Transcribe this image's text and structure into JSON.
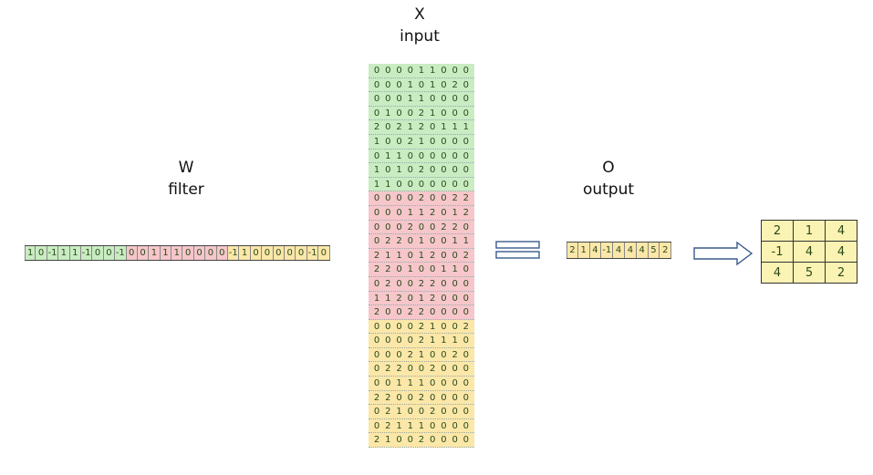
{
  "labels": {
    "w_symbol": "W",
    "w_name": "filter",
    "x_symbol": "X",
    "x_name": "input",
    "o_symbol": "O",
    "o_name": "output"
  },
  "colors": {
    "green": "#c9ecc2",
    "red": "#f6c6cb",
    "yellow": "#fbe7a8",
    "matrix": "#fbf3b3"
  },
  "filter": [
    {
      "color": "green",
      "values": [
        "1",
        "0",
        "-1",
        "1",
        "1",
        "-1",
        "0",
        "0",
        "-1"
      ]
    },
    {
      "color": "red",
      "values": [
        "0",
        "0",
        "1",
        "1",
        "1",
        "0",
        "0",
        "0",
        "0"
      ]
    },
    {
      "color": "yellow",
      "values": [
        "-1",
        "1",
        "0",
        "0",
        "0",
        "0",
        "0",
        "-1",
        "0"
      ]
    }
  ],
  "input": [
    {
      "color": "green",
      "rows": [
        "0 0 0 0 1 1 0 0 0",
        "0 0 0 1 0 1 0 2 0",
        "0 0 0 1 1 0 0 0 0",
        "0 1 0 0 2 1 0 0 0",
        "2 0 2 1 2 0 1 1 1",
        "1 0 0 2 1 0 0 0 0",
        "0 1 1 0 0 0 0 0 0",
        "1 0 1 0 2 0 0 0 0",
        "1 1 0 0 0 0 0 0 0"
      ]
    },
    {
      "color": "red",
      "rows": [
        "0 0 0 0 2 0 0 2 2",
        "0 0 0 1 1 2 0 1 2",
        "0 0 0 2 0 0 2 2 0",
        "0 2 2 0 1 0 0 1 1",
        "2 1 1 0 1 2 0 0 2",
        "2 2 0 1 0 0 1 1 0",
        "0 2 0 0 2 2 0 0 0",
        "1 1 2 0 1 2 0 0 0",
        "2 0 0 2 2 0 0 0 0"
      ]
    },
    {
      "color": "yellow",
      "rows": [
        "0 0 0 0 2 1 0 0 2",
        "0 0 0 0 2 1 1 1 0",
        "0 0 0 2 1 0 0 2 0",
        "0 2 2 0 0 2 0 0 0",
        "0 0 1 1 1 0 0 0 0",
        "2 2 0 0 2 0 0 0 0",
        "0 2 1 0 0 2 0 0 0",
        "0 2 1 1 1 0 0 0 0",
        "2 1 0 0 2 0 0 0 0"
      ]
    }
  ],
  "output_vector": [
    "2",
    "1",
    "4",
    "-1",
    "4",
    "4",
    "4",
    "5",
    "2"
  ],
  "output_matrix": [
    [
      "2",
      "1",
      "4"
    ],
    [
      "-1",
      "4",
      "4"
    ],
    [
      "4",
      "5",
      "2"
    ]
  ]
}
